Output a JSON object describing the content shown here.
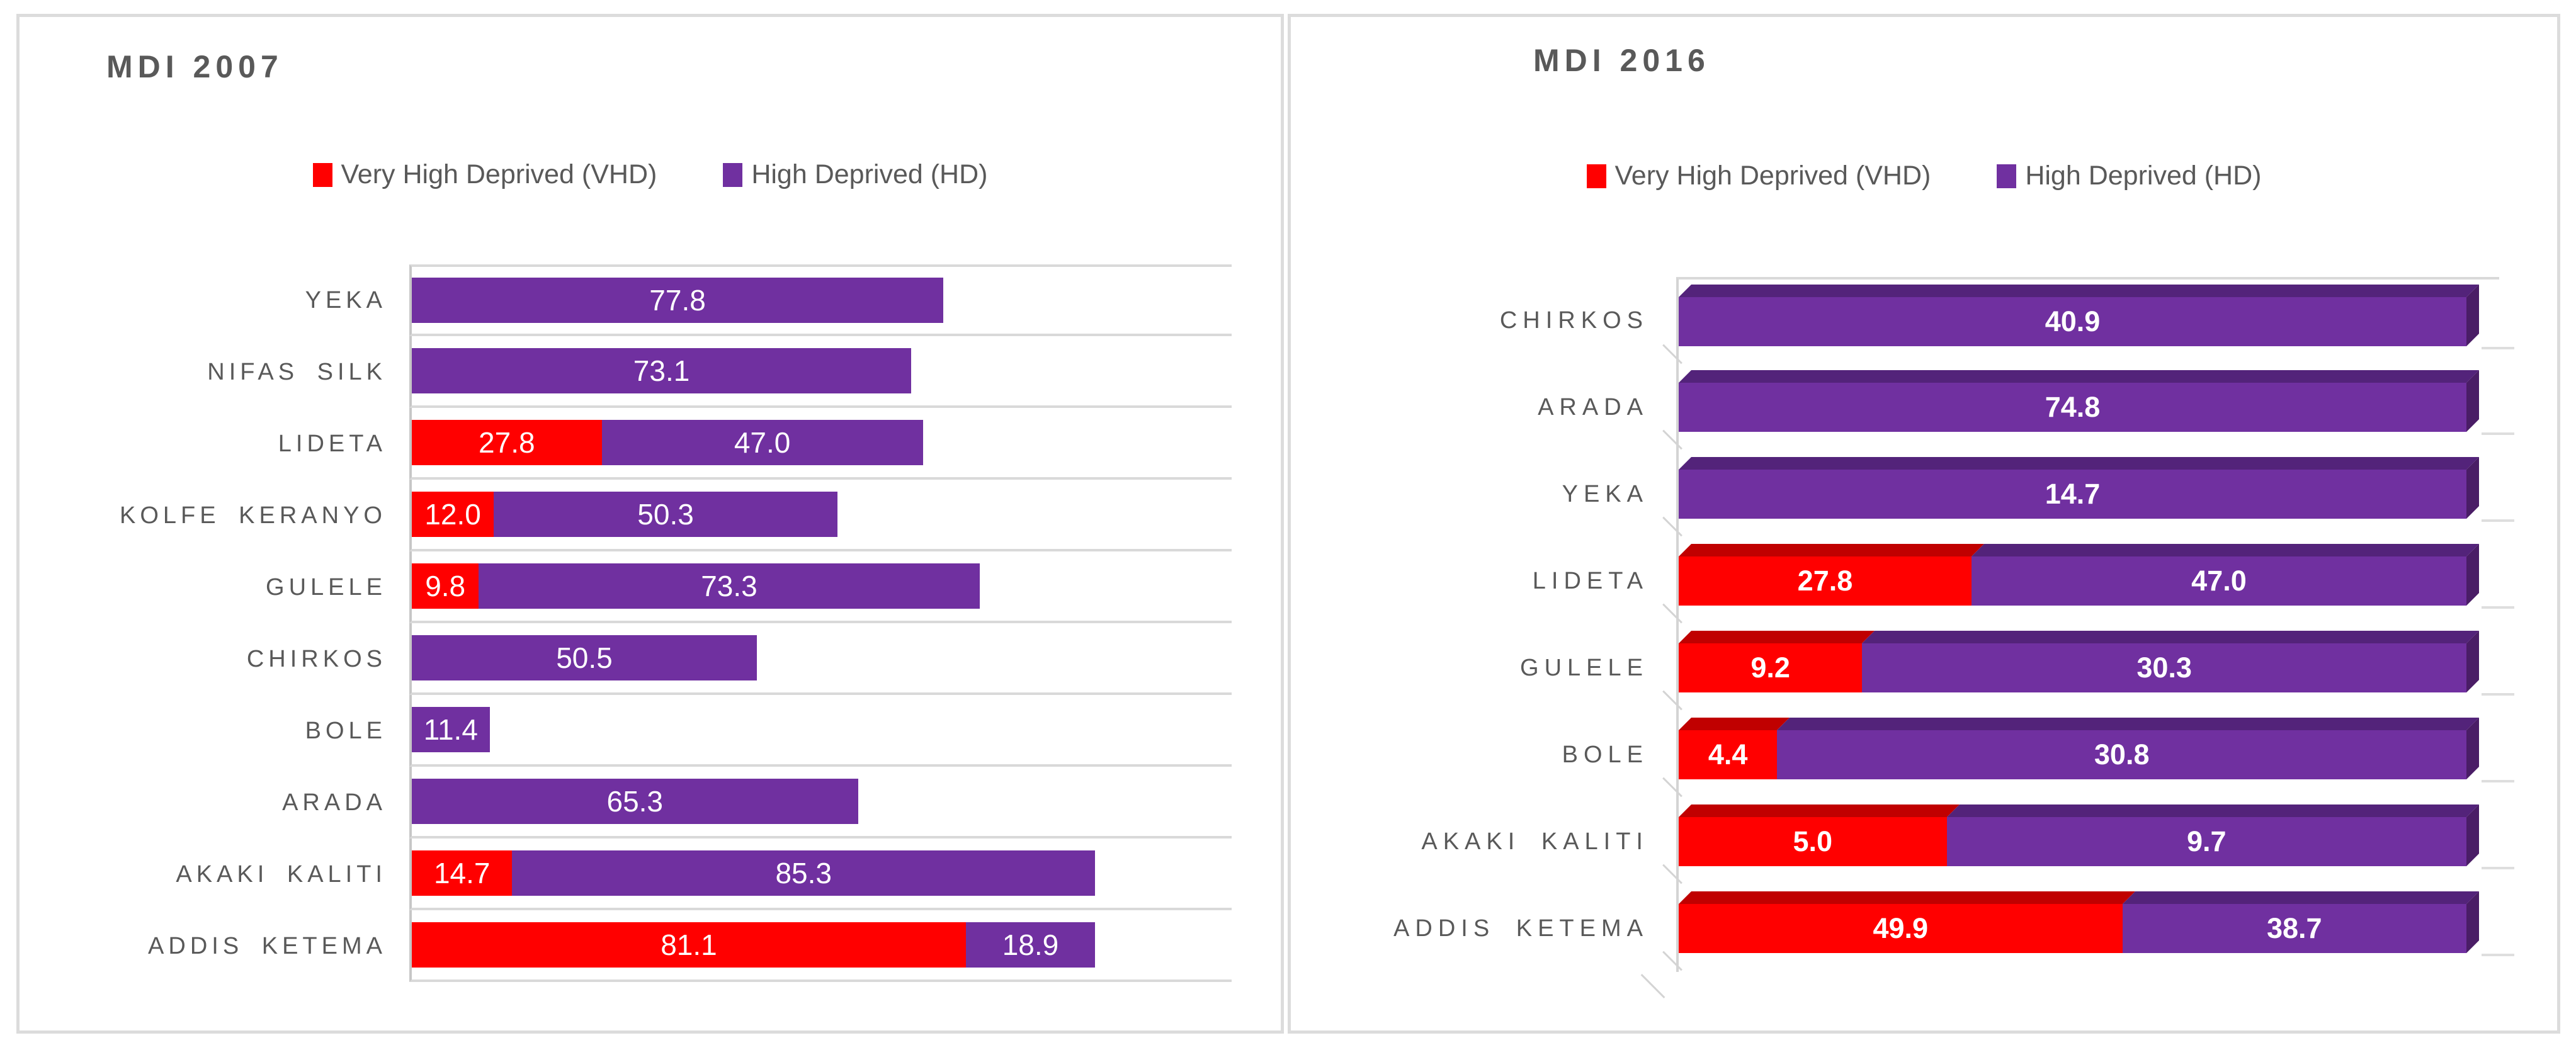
{
  "accent_colors": {
    "vhd_red": "#FF0000",
    "hd_purple": "#7030A0",
    "text_grey": "#595959",
    "gridline_grey": "#D9D9D9"
  },
  "chart_data": [
    {
      "type": "bar",
      "subtype": "stacked-horizontal",
      "renderer": "flat",
      "percent_stacked": false,
      "title": "MDI 2007",
      "legend_position": "top",
      "grid": "row-separators-on",
      "axis": {
        "min": 0,
        "max": 120,
        "tick_labels_visible": false
      },
      "categories": [
        "YEKA",
        "NIFAS SILK",
        "LIDETA",
        "KOLFE KERANYO",
        "GULELE",
        "CHIRKOS",
        "BOLE",
        "ARADA",
        "AKAKI KALITI",
        "ADDIS KETEMA"
      ],
      "series": [
        {
          "name": "Very High Deprived (VHD)",
          "color": "#FF0000",
          "values": [
            null,
            null,
            27.8,
            12.0,
            9.8,
            null,
            null,
            null,
            14.7,
            81.1
          ]
        },
        {
          "name": "High Deprived (HD)",
          "color": "#7030A0",
          "values": [
            77.8,
            73.1,
            47.0,
            50.3,
            73.3,
            50.5,
            11.4,
            65.3,
            85.3,
            18.9
          ]
        }
      ]
    },
    {
      "type": "bar",
      "subtype": "100%-stacked-horizontal-3d",
      "renderer": "3d",
      "percent_stacked": true,
      "title": "MDI 2016",
      "legend_position": "top",
      "grid": "back-wall-on",
      "axis": {
        "min": 0,
        "max": 100,
        "tick_labels_visible": false
      },
      "categories": [
        "CHIRKOS",
        "ARADA",
        "YEKA",
        "LIDETA",
        "GULELE",
        "BOLE",
        "AKAKI KALITI",
        "ADDIS KETEMA"
      ],
      "series": [
        {
          "name": "Very High Deprived (VHD)",
          "color": "#FF0000",
          "color_top": "#C00000",
          "color_side": "#9A0000",
          "values": [
            null,
            null,
            null,
            27.8,
            9.2,
            4.4,
            5.0,
            49.9
          ]
        },
        {
          "name": "High Deprived (HD)",
          "color": "#7030A0",
          "color_top": "#53237A",
          "color_side": "#4A1D66",
          "values": [
            40.9,
            74.8,
            14.7,
            47.0,
            30.3,
            30.8,
            9.7,
            38.7
          ]
        }
      ]
    }
  ]
}
